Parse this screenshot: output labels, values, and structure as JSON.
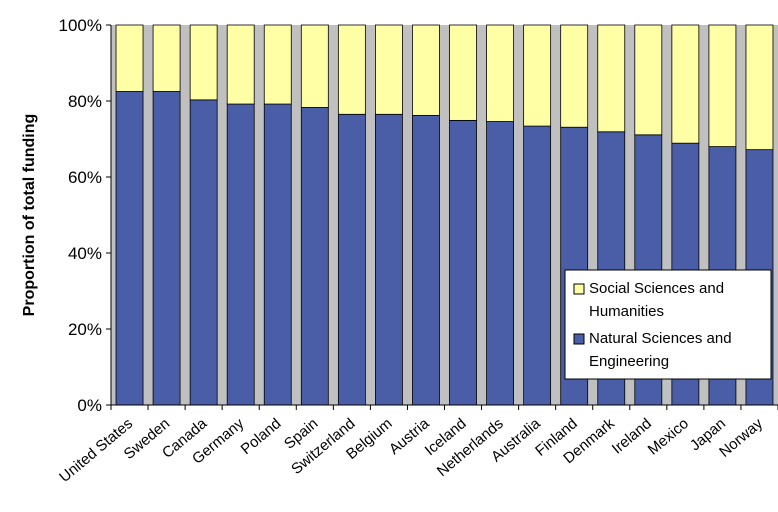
{
  "chart_data": {
    "type": "bar",
    "stacked": true,
    "normalized": true,
    "ylabel": "Proportion of total funding",
    "ylim": [
      0,
      100
    ],
    "yticks": [
      "0%",
      "20%",
      "40%",
      "60%",
      "80%",
      "100%"
    ],
    "grid": false,
    "legend_position": "right",
    "categories": [
      "United States",
      "Sweden",
      "Canada",
      "Germany",
      "Poland",
      "Spain",
      "Switzerland",
      "Belgium",
      "Austria",
      "Iceland",
      "Netherlands",
      "Australia",
      "Finland",
      "Denmark",
      "Ireland",
      "Mexico",
      "Japan",
      "Norway"
    ],
    "series": [
      {
        "name": "Natural Sciences and Engineering",
        "color": "#4a5ea8",
        "values": [
          82.5,
          82.5,
          80.3,
          79.2,
          79.2,
          78.3,
          76.5,
          76.5,
          76.2,
          74.9,
          74.6,
          73.4,
          73.1,
          71.9,
          71.1,
          68.9,
          68.0,
          67.2
        ]
      },
      {
        "name": "Social Sciences and Humanities",
        "color": "#ffffa6",
        "values": [
          17.5,
          17.5,
          19.7,
          20.8,
          20.8,
          21.7,
          23.5,
          23.5,
          23.8,
          25.1,
          25.4,
          26.6,
          26.9,
          28.1,
          28.9,
          31.1,
          32.0,
          32.8
        ]
      }
    ],
    "legend": [
      {
        "lines": [
          "Social Sciences and",
          "Humanities"
        ],
        "color": "#ffffa6"
      },
      {
        "lines": [
          "Natural Sciences and",
          "Engineering"
        ],
        "color": "#4a5ea8"
      }
    ],
    "plot_background": "#c0c0c0"
  }
}
